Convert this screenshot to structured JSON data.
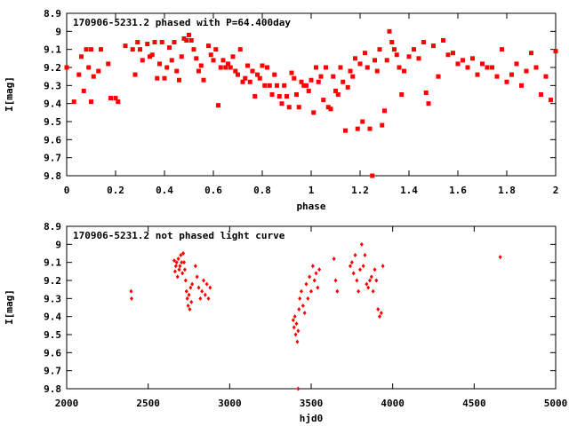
{
  "chart_data": [
    {
      "type": "scatter",
      "title": "170906-5231.2 phased with P=64.400day",
      "xlabel": "phase",
      "ylabel": "I[mag]",
      "xlim": [
        0,
        2
      ],
      "ylim": [
        8.9,
        9.8
      ],
      "y_inverted": true,
      "grid": false,
      "x_ticks": [
        "0",
        "0.2",
        "0.4",
        "0.6",
        "0.8",
        "1",
        "1.2",
        "1.4",
        "1.6",
        "1.8",
        "2"
      ],
      "y_ticks": [
        "8.9",
        "9",
        "9.1",
        "9.2",
        "9.3",
        "9.4",
        "9.5",
        "9.6",
        "9.7",
        "9.8"
      ],
      "marker_color": "#ff0000",
      "series": [
        {
          "x": [
            0.0,
            0.03,
            0.05,
            0.06,
            0.07,
            0.08,
            0.09,
            0.1,
            0.1,
            0.11,
            0.13,
            0.14,
            0.17,
            0.18,
            0.2,
            0.21,
            0.24,
            0.27,
            0.28,
            0.29,
            0.3,
            0.31,
            0.33,
            0.34,
            0.35,
            0.36,
            0.37,
            0.38,
            0.39,
            0.4,
            0.41,
            0.42,
            0.43,
            0.44,
            0.45,
            0.46,
            0.47,
            0.48,
            0.49,
            0.5,
            0.51,
            0.52,
            0.53,
            0.54,
            0.55,
            0.56,
            0.58,
            0.59,
            0.6,
            0.61,
            0.62,
            0.63,
            0.64,
            0.65,
            0.66,
            0.67,
            0.68,
            0.69,
            0.7,
            0.71,
            0.72,
            0.73,
            0.74,
            0.75,
            0.76,
            0.77,
            0.78,
            0.79,
            0.8,
            0.81,
            0.82,
            0.83,
            0.84,
            0.85,
            0.86,
            0.87,
            0.88,
            0.89,
            0.9,
            0.91,
            0.92,
            0.93,
            0.94,
            0.95,
            0.96,
            0.97,
            0.98,
            0.99,
            1.0,
            1.01,
            1.02,
            1.03,
            1.04,
            1.05,
            1.06,
            1.07,
            1.08,
            1.09,
            1.1,
            1.11,
            1.12,
            1.13,
            1.14,
            1.15,
            1.16,
            1.17,
            1.18,
            1.19,
            1.2,
            1.21,
            1.22,
            1.23,
            1.24,
            1.25,
            1.26,
            1.27,
            1.28,
            1.29,
            1.3,
            1.31,
            1.32,
            1.33,
            1.34,
            1.35,
            1.36,
            1.37,
            1.38,
            1.4,
            1.42,
            1.44,
            1.46,
            1.47,
            1.48,
            1.5,
            1.52,
            1.54,
            1.56,
            1.58,
            1.6,
            1.62,
            1.64,
            1.66,
            1.68,
            1.7,
            1.72,
            1.74,
            1.76,
            1.78,
            1.8,
            1.82,
            1.84,
            1.86,
            1.88,
            1.9,
            1.92,
            1.94,
            1.96,
            1.98,
            2.0
          ],
          "y": [
            9.2,
            9.39,
            9.24,
            9.14,
            9.33,
            9.1,
            9.2,
            9.39,
            9.1,
            9.25,
            9.22,
            9.1,
            9.18,
            9.37,
            9.37,
            9.39,
            9.08,
            9.1,
            9.24,
            9.06,
            9.1,
            9.16,
            9.07,
            9.14,
            9.13,
            9.06,
            9.26,
            9.18,
            9.06,
            9.26,
            9.2,
            9.09,
            9.16,
            9.06,
            9.22,
            9.27,
            9.14,
            9.04,
            9.05,
            9.02,
            9.05,
            9.1,
            9.15,
            9.22,
            9.19,
            9.27,
            9.08,
            9.13,
            9.16,
            9.1,
            9.41,
            9.2,
            9.16,
            9.2,
            9.18,
            9.2,
            9.14,
            9.22,
            9.24,
            9.1,
            9.28,
            9.26,
            9.19,
            9.28,
            9.22,
            9.36,
            9.24,
            9.26,
            9.19,
            9.3,
            9.2,
            9.3,
            9.35,
            9.24,
            9.3,
            9.36,
            9.4,
            9.3,
            9.36,
            9.42,
            9.23,
            9.26,
            9.35,
            9.42,
            9.28,
            9.3,
            9.3,
            9.33,
            9.27,
            9.45,
            9.2,
            9.28,
            9.25,
            9.38,
            9.2,
            9.42,
            9.43,
            9.25,
            9.33,
            9.35,
            9.2,
            9.28,
            9.55,
            9.31,
            9.22,
            9.25,
            9.15,
            9.54,
            9.18,
            9.5,
            9.12,
            9.2,
            9.54,
            9.8,
            9.16,
            9.22,
            9.1,
            9.52,
            9.44,
            9.16,
            9.0,
            9.06,
            9.1,
            9.13,
            9.2,
            9.35,
            9.22,
            9.14,
            9.1,
            9.15,
            9.06,
            9.34,
            9.4,
            9.08,
            9.25,
            9.05,
            9.13,
            9.12,
            9.18,
            9.16,
            9.2,
            9.15,
            9.24,
            9.18,
            9.2,
            9.2,
            9.25,
            9.1,
            9.28,
            9.24,
            9.18,
            9.3,
            9.22,
            9.12,
            9.2,
            9.35,
            9.25,
            9.38,
            9.11
          ]
        }
      ]
    },
    {
      "type": "scatter",
      "title": "170906-5231.2 not phased light curve",
      "xlabel": "hjd0",
      "ylabel": "I[mag]",
      "xlim": [
        2000,
        5000
      ],
      "ylim": [
        8.9,
        9.8
      ],
      "y_inverted": true,
      "grid": false,
      "x_ticks": [
        "2000",
        "2500",
        "3000",
        "3500",
        "4000",
        "4500",
        "5000"
      ],
      "y_ticks": [
        "8.9",
        "9",
        "9.1",
        "9.2",
        "9.3",
        "9.4",
        "9.5",
        "9.6",
        "9.7",
        "9.8"
      ],
      "marker_color": "#ff0000",
      "series": [
        {
          "x": [
            2395,
            2398,
            2660,
            2665,
            2670,
            2675,
            2680,
            2685,
            2690,
            2695,
            2700,
            2705,
            2710,
            2715,
            2720,
            2725,
            2730,
            2735,
            2740,
            2745,
            2750,
            2755,
            2760,
            2765,
            2770,
            2790,
            2800,
            2810,
            2820,
            2830,
            2840,
            2850,
            2860,
            2870,
            2880,
            3390,
            3395,
            3400,
            3405,
            3410,
            3415,
            3420,
            3425,
            3430,
            3440,
            3450,
            3460,
            3470,
            3480,
            3490,
            3500,
            3510,
            3520,
            3530,
            3540,
            3550,
            3640,
            3650,
            3660,
            3740,
            3750,
            3760,
            3770,
            3780,
            3790,
            3800,
            3810,
            3820,
            3830,
            3840,
            3850,
            3860,
            3870,
            3880,
            3890,
            3900,
            3910,
            3920,
            3930,
            3940,
            4660,
            3420
          ],
          "y": [
            9.26,
            9.3,
            9.09,
            9.15,
            9.12,
            9.1,
            9.18,
            9.08,
            9.14,
            9.12,
            9.06,
            9.1,
            9.16,
            9.05,
            9.1,
            9.14,
            9.2,
            9.26,
            9.3,
            9.34,
            9.28,
            9.36,
            9.24,
            9.32,
            9.22,
            9.12,
            9.18,
            9.24,
            9.3,
            9.26,
            9.2,
            9.28,
            9.22,
            9.3,
            9.24,
            9.42,
            9.46,
            9.4,
            9.5,
            9.44,
            9.54,
            9.48,
            9.36,
            9.3,
            9.26,
            9.34,
            9.38,
            9.22,
            9.3,
            9.18,
            9.26,
            9.12,
            9.2,
            9.16,
            9.24,
            9.14,
            9.08,
            9.2,
            9.26,
            9.12,
            9.1,
            9.16,
            9.06,
            9.2,
            9.26,
            9.14,
            9.0,
            9.12,
            9.06,
            9.22,
            9.24,
            9.2,
            9.18,
            9.26,
            9.14,
            9.2,
            9.36,
            9.4,
            9.38,
            9.12,
            9.07,
            9.8
          ]
        }
      ]
    }
  ]
}
